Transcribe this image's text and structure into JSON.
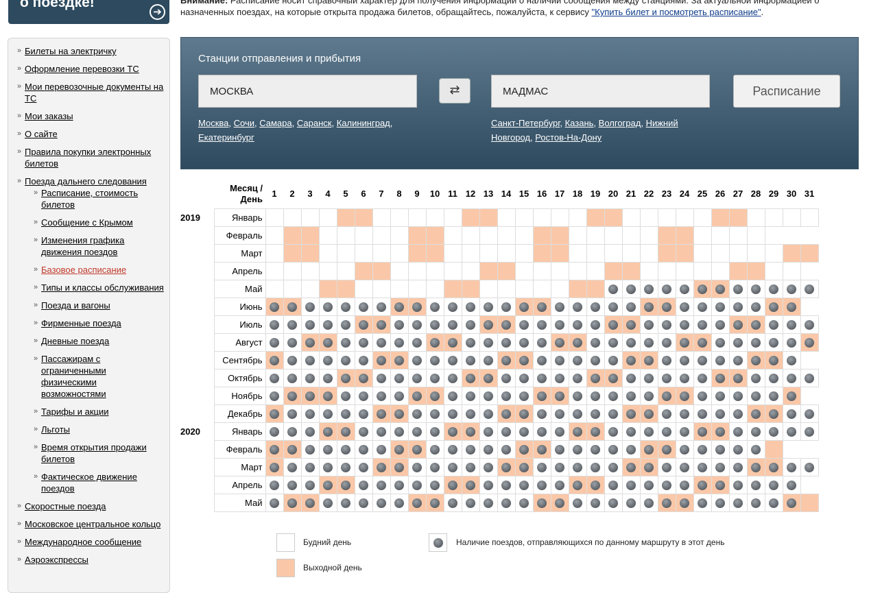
{
  "banner": {
    "title": "о поездке!",
    "arrow": "➔"
  },
  "notice": {
    "bold": "Внимание:",
    "text": " Расписание носит справочный характер для получения информации о наличии сообщения между станциями. За актуальной информацией о назначенных поездах, на которые открыта продажа билетов, обращайтесь, пожалуйста, к сервису ",
    "link": "\"Купить билет и посмотреть расписание\"",
    "end": "."
  },
  "sidebar": {
    "items_top": [
      "Билеты на электричку",
      "Оформление перевозки ТС",
      "Мои перевозочные документы на ТС",
      "Мои заказы",
      "О сайте",
      "Правила покупки электронных билетов",
      "Поезда дальнего следования"
    ],
    "sub_items": [
      "Расписание, стоимость билетов",
      "Сообщение с Крымом",
      "Изменения графика движения поездов",
      "Базовое расписание",
      "Типы и классы обслуживания",
      "Поезда и вагоны",
      "Фирменные поезда",
      "Дневные поезда",
      "Пассажирам с ограниченными физическими возможностями",
      "Тарифы и акции",
      "Льготы",
      "Время открытия продажи билетов",
      "Фактическое движение поездов"
    ],
    "active_sub": "Базовое расписание",
    "items_bottom": [
      "Скоростные поезда",
      "Московское центральное кольцо",
      "Международное сообщение",
      "Аэроэкспрессы"
    ]
  },
  "panel": {
    "title": "Станции отправления и прибытия",
    "from_value": "МОСКВА",
    "to_value": "МАДМАС",
    "swap_icon": "⇄",
    "schedule_label": "Расписание",
    "from_quick": [
      "Москва",
      "Сочи",
      "Самара",
      "Саранск",
      "Калининград",
      "Екатеринбург"
    ],
    "to_quick": [
      "Санкт-Петербург",
      "Казань",
      "Волгоград",
      "Нижний Новгород",
      "Ростов-На-Дону"
    ]
  },
  "calendar": {
    "header_month": "Месяц / День",
    "rows": [
      {
        "year": "2019",
        "month": "Январь",
        "len": 31,
        "off": [
          5,
          6,
          12,
          13,
          19,
          20,
          26,
          27
        ],
        "trains_from": 0
      },
      {
        "year": "",
        "month": "Февраль",
        "len": 28,
        "off": [
          2,
          3,
          9,
          10,
          16,
          17,
          23,
          24
        ],
        "trains_from": 0
      },
      {
        "year": "",
        "month": "Март",
        "len": 31,
        "off": [
          2,
          3,
          9,
          10,
          16,
          17,
          23,
          24,
          30,
          31
        ],
        "trains_from": 0
      },
      {
        "year": "",
        "month": "Апрель",
        "len": 30,
        "off": [
          6,
          7,
          13,
          14,
          20,
          21,
          27,
          28
        ],
        "trains_from": 0
      },
      {
        "year": "",
        "month": "Май",
        "len": 31,
        "off": [
          4,
          5,
          11,
          12,
          18,
          19,
          25,
          26
        ],
        "trains_from": 20
      },
      {
        "year": "",
        "month": "Июнь",
        "len": 30,
        "off": [
          1,
          2,
          8,
          9,
          15,
          16,
          22,
          23,
          29,
          30
        ],
        "trains_from": 1
      },
      {
        "year": "",
        "month": "Июль",
        "len": 31,
        "off": [
          6,
          7,
          13,
          14,
          20,
          21,
          27,
          28
        ],
        "trains_from": 1
      },
      {
        "year": "",
        "month": "Август",
        "len": 31,
        "off": [
          3,
          4,
          10,
          11,
          17,
          18,
          24,
          25,
          31
        ],
        "trains_from": 1
      },
      {
        "year": "",
        "month": "Сентябрь",
        "len": 30,
        "off": [
          1,
          7,
          8,
          14,
          15,
          21,
          22,
          28,
          29
        ],
        "trains_from": 1
      },
      {
        "year": "",
        "month": "Октябрь",
        "len": 31,
        "off": [
          5,
          6,
          12,
          13,
          19,
          20,
          26,
          27
        ],
        "trains_from": 1
      },
      {
        "year": "",
        "month": "Ноябрь",
        "len": 30,
        "off": [
          2,
          3,
          4,
          9,
          10,
          16,
          17,
          23,
          24,
          30
        ],
        "trains_from": 1
      },
      {
        "year": "",
        "month": "Декабрь",
        "len": 31,
        "off": [
          1,
          7,
          8,
          14,
          15,
          21,
          22,
          28,
          29
        ],
        "trains_from": 1
      },
      {
        "year": "2020",
        "month": "Январь",
        "len": 31,
        "off": [
          4,
          5,
          11,
          12,
          18,
          19,
          25,
          26
        ],
        "trains_from": 1
      },
      {
        "year": "",
        "month": "Февраль",
        "len": 29,
        "off": [
          1,
          2,
          8,
          9,
          15,
          16,
          22,
          23,
          29
        ],
        "trains_from": 1
      },
      {
        "year": "",
        "month": "Март",
        "len": 31,
        "off": [
          1,
          7,
          8,
          14,
          15,
          21,
          22,
          28,
          29
        ],
        "trains_from": 1
      },
      {
        "year": "",
        "month": "Апрель",
        "len": 30,
        "off": [
          4,
          5,
          11,
          12,
          18,
          19,
          25,
          26
        ],
        "trains_from": 1
      },
      {
        "year": "",
        "month": "Май",
        "len": 31,
        "off": [
          2,
          3,
          9,
          10,
          16,
          17,
          23,
          24,
          30,
          31
        ],
        "trains_from": 1
      }
    ],
    "trains_last": {
      "Август": 31,
      "Декабрь": 31,
      "Февраль2020": 28,
      "Май2020": 30
    }
  },
  "legend": {
    "weekday": "Будний день",
    "weekend": "Выходной день",
    "trains": "Наличие поездов, отправляющихся по данному маршруту в этот день",
    "weekend_color": "#fac8a8"
  }
}
